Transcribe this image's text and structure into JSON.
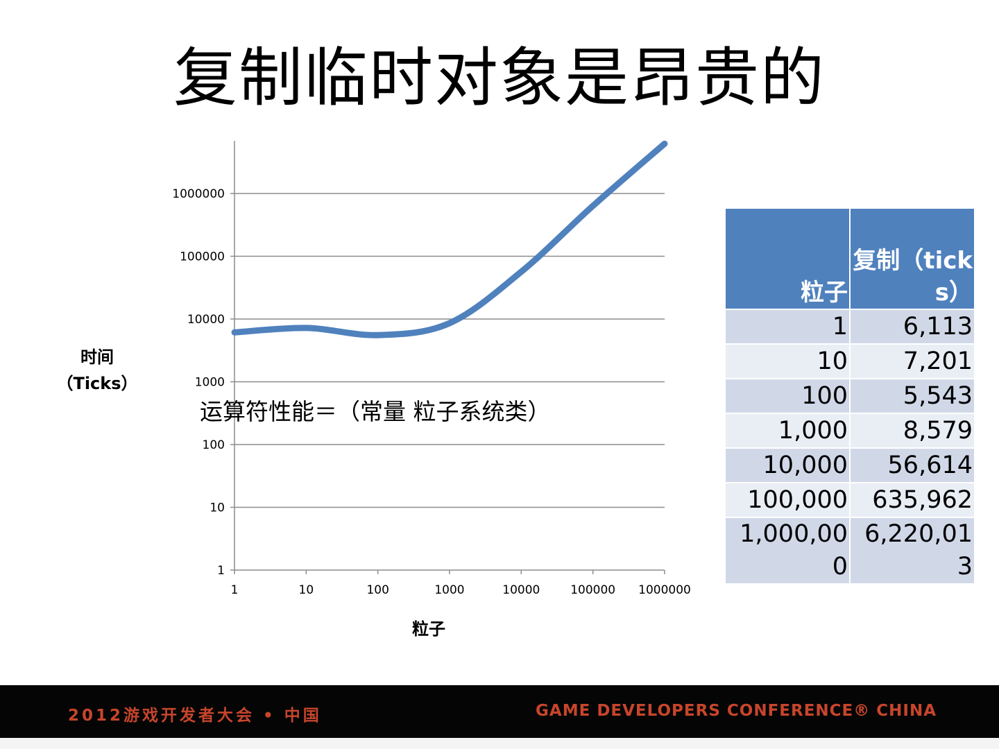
{
  "slide": {
    "title": "复制临时对象是昂贵的"
  },
  "chart_data": {
    "type": "line",
    "x_scale": "log",
    "y_scale": "log",
    "xlim": [
      1,
      1000000
    ],
    "ylim": [
      1,
      6220013
    ],
    "x_ticks": [
      "1",
      "10",
      "100",
      "1000",
      "10000",
      "100000",
      "1000000"
    ],
    "y_ticks": [
      "1",
      "10",
      "100",
      "1000",
      "10000",
      "100000",
      "1000000"
    ],
    "xlabel": "粒子",
    "ylabel_line1": "时间",
    "ylabel_line2": "（Ticks）",
    "annotation": "运算符性能＝（常量 粒子系统类）",
    "grid": true,
    "series": [
      {
        "color": "#4f81bd",
        "x": [
          1,
          10,
          100,
          1000,
          10000,
          100000,
          1000000
        ],
        "y": [
          6113,
          7201,
          5543,
          8579,
          56614,
          635962,
          6220013
        ]
      }
    ]
  },
  "table": {
    "headers": [
      "粒子",
      "复制（ticks）"
    ],
    "rows": [
      [
        "1",
        "6,113"
      ],
      [
        "10",
        "7,201"
      ],
      [
        "100",
        "5,543"
      ],
      [
        "1,000",
        "8,579"
      ],
      [
        "10,000",
        "56,614"
      ],
      [
        "100,000",
        "635,962"
      ],
      [
        "1,000,000",
        "6,220,013"
      ]
    ]
  },
  "footer": {
    "left_text": "2012游戏开发者大会 • 中国",
    "right_text": "GAME DEVELOPERS CONFERENCE® CHINA"
  }
}
